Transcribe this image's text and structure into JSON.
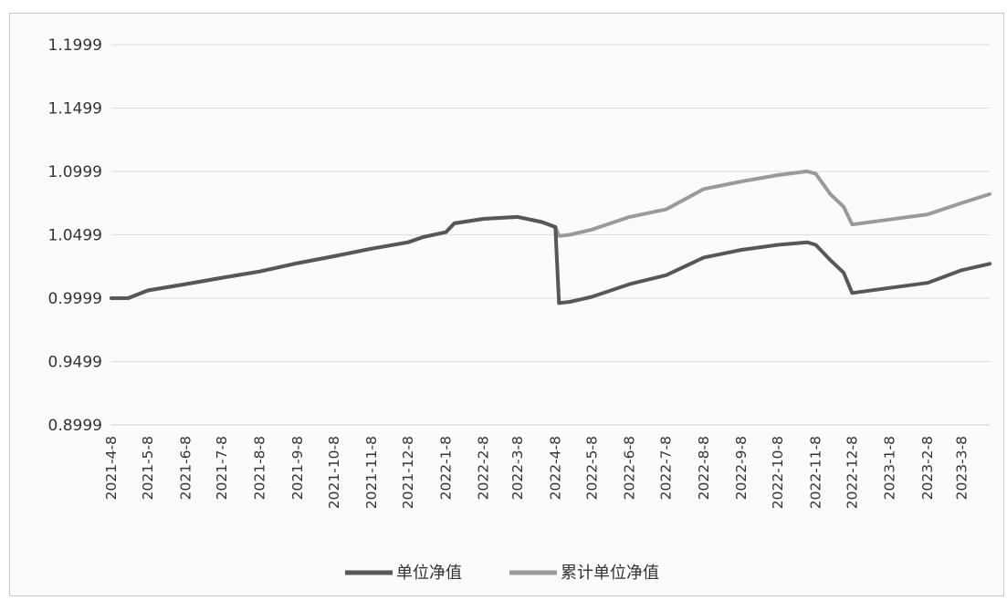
{
  "chart_data": {
    "type": "line",
    "title": "",
    "xlabel": "",
    "ylabel": "",
    "ylim": [
      0.8999,
      1.1999
    ],
    "y_ticks": [
      "1.1999",
      "1.1499",
      "1.0999",
      "1.0499",
      "0.9999",
      "0.9499",
      "0.8999"
    ],
    "x_ticks": [
      "2021-4-8",
      "2021-5-8",
      "2021-6-8",
      "2021-7-8",
      "2021-8-8",
      "2021-9-8",
      "2021-10-8",
      "2021-11-8",
      "2021-12-8",
      "2022-1-8",
      "2022-2-8",
      "2022-3-8",
      "2022-4-8",
      "2022-5-8",
      "2022-6-8",
      "2022-7-8",
      "2022-8-8",
      "2022-9-8",
      "2022-10-8",
      "2022-11-8",
      "2022-12-8",
      "2023-1-8",
      "2023-2-8",
      "2023-3-8"
    ],
    "grid": true,
    "legend": "bottom",
    "series": [
      {
        "name": "单位净值",
        "color": "#575757",
        "points": [
          [
            "2021-4-8",
            0.9999
          ],
          [
            "2021-4-22",
            1.0
          ],
          [
            "2021-5-8",
            1.006
          ],
          [
            "2021-6-8",
            1.011
          ],
          [
            "2021-7-8",
            1.016
          ],
          [
            "2021-8-8",
            1.021
          ],
          [
            "2021-9-8",
            1.0275
          ],
          [
            "2021-10-8",
            1.033
          ],
          [
            "2021-11-8",
            1.039
          ],
          [
            "2021-12-8",
            1.044
          ],
          [
            "2021-12-20",
            1.048
          ],
          [
            "2022-1-8",
            1.052
          ],
          [
            "2022-1-15",
            1.059
          ],
          [
            "2022-2-8",
            1.0625
          ],
          [
            "2022-3-8",
            1.064
          ],
          [
            "2022-3-28",
            1.06
          ],
          [
            "2022-4-8",
            1.056
          ],
          [
            "2022-4-11",
            0.996
          ],
          [
            "2022-4-20",
            0.997
          ],
          [
            "2022-5-8",
            1.001
          ],
          [
            "2022-6-8",
            1.011
          ],
          [
            "2022-7-8",
            1.018
          ],
          [
            "2022-8-8",
            1.032
          ],
          [
            "2022-9-8",
            1.038
          ],
          [
            "2022-10-8",
            1.042
          ],
          [
            "2022-11-1",
            1.044
          ],
          [
            "2022-11-8",
            1.042
          ],
          [
            "2022-11-20",
            1.03
          ],
          [
            "2022-12-1",
            1.02
          ],
          [
            "2022-12-8",
            1.004
          ],
          [
            "2023-1-8",
            1.008
          ],
          [
            "2023-2-8",
            1.012
          ],
          [
            "2023-3-8",
            1.022
          ],
          [
            "2023-3-31",
            1.027
          ]
        ]
      },
      {
        "name": "累计单位净值",
        "color": "#9a9a9a",
        "points": [
          [
            "2021-4-8",
            0.9999
          ],
          [
            "2021-4-22",
            1.0
          ],
          [
            "2021-5-8",
            1.006
          ],
          [
            "2021-6-8",
            1.011
          ],
          [
            "2021-7-8",
            1.016
          ],
          [
            "2021-8-8",
            1.021
          ],
          [
            "2021-9-8",
            1.0275
          ],
          [
            "2021-10-8",
            1.033
          ],
          [
            "2021-11-8",
            1.039
          ],
          [
            "2021-12-8",
            1.044
          ],
          [
            "2021-12-20",
            1.048
          ],
          [
            "2022-1-8",
            1.052
          ],
          [
            "2022-1-15",
            1.059
          ],
          [
            "2022-2-8",
            1.0625
          ],
          [
            "2022-3-8",
            1.064
          ],
          [
            "2022-3-28",
            1.06
          ],
          [
            "2022-4-8",
            1.056
          ],
          [
            "2022-4-11",
            1.049
          ],
          [
            "2022-4-20",
            1.05
          ],
          [
            "2022-5-8",
            1.054
          ],
          [
            "2022-6-8",
            1.064
          ],
          [
            "2022-7-8",
            1.07
          ],
          [
            "2022-8-8",
            1.086
          ],
          [
            "2022-9-8",
            1.092
          ],
          [
            "2022-10-8",
            1.097
          ],
          [
            "2022-11-1",
            1.1
          ],
          [
            "2022-11-8",
            1.098
          ],
          [
            "2022-11-20",
            1.082
          ],
          [
            "2022-12-1",
            1.072
          ],
          [
            "2022-12-8",
            1.058
          ],
          [
            "2023-1-8",
            1.062
          ],
          [
            "2023-2-8",
            1.066
          ],
          [
            "2023-3-8",
            1.075
          ],
          [
            "2023-3-31",
            1.082
          ]
        ]
      }
    ]
  }
}
